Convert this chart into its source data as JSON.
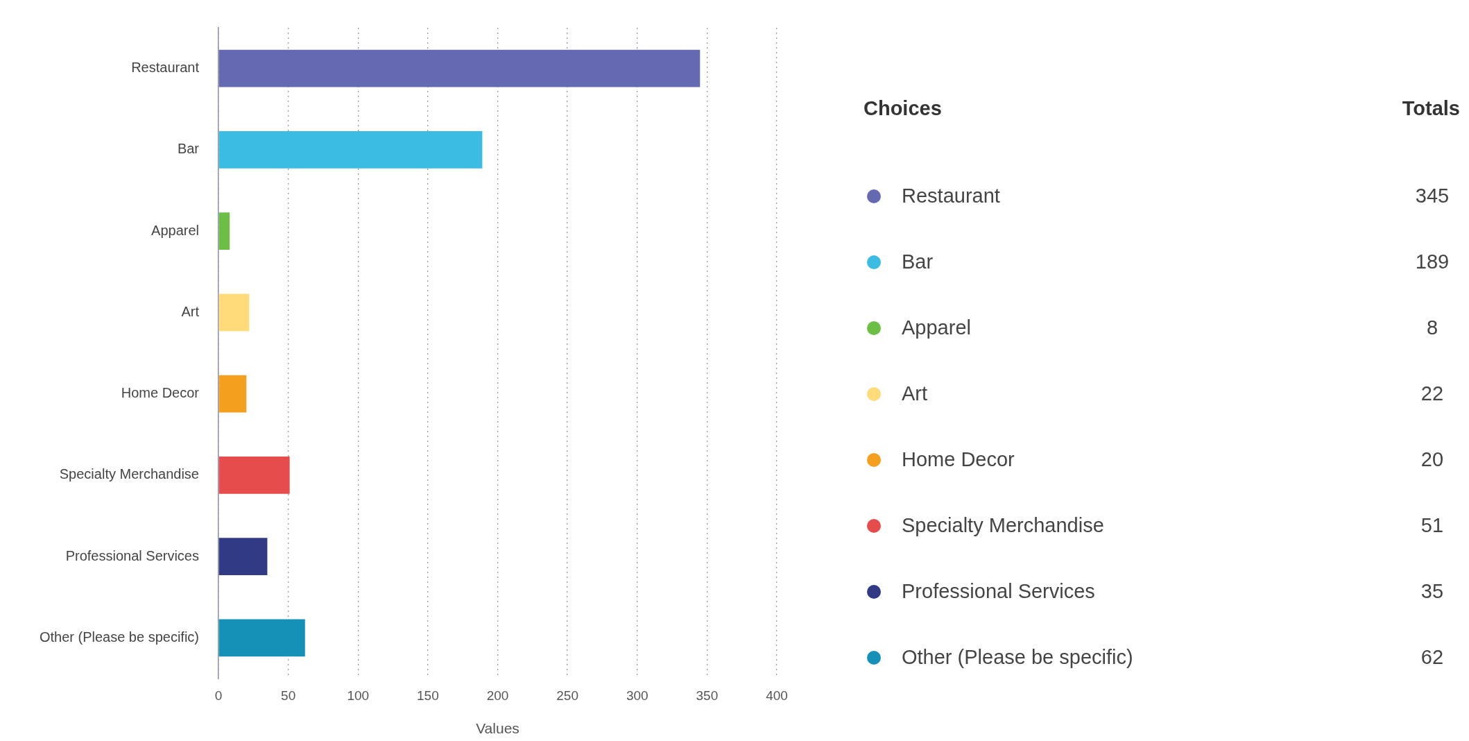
{
  "chart_data": [
    {
      "type": "bar",
      "orientation": "horizontal",
      "xlabel": "Values",
      "categories": [
        "Restaurant",
        "Bar",
        "Apparel",
        "Art",
        "Home Decor",
        "Specialty Merchandise",
        "Professional Services",
        "Other (Please be specific)"
      ],
      "values": [
        345,
        189,
        8,
        22,
        20,
        51,
        35,
        62
      ],
      "colors": [
        "#6469b1",
        "#3bbce3",
        "#6bbf44",
        "#ffdb7a",
        "#f59f1e",
        "#e64c4c",
        "#303a85",
        "#1591b8"
      ],
      "xlim": [
        0,
        400
      ],
      "xticks": [
        0,
        50,
        100,
        150,
        200,
        250,
        300,
        350,
        400
      ],
      "grid": "x"
    },
    {
      "type": "other",
      "annotations": [
        "Choices",
        "Totals"
      ],
      "data_labels": true,
      "categories": [
        "Restaurant",
        "Bar",
        "Apparel",
        "Art",
        "Home Decor",
        "Specialty Merchandise",
        "Professional Services",
        "Other (Please be specific)"
      ],
      "values": [
        345,
        189,
        8,
        22,
        20,
        51,
        35,
        62
      ],
      "colors": [
        "#6469b1",
        "#3bbce3",
        "#6bbf44",
        "#ffdb7a",
        "#f59f1e",
        "#e64c4c",
        "#303a85",
        "#1591b8"
      ]
    }
  ]
}
